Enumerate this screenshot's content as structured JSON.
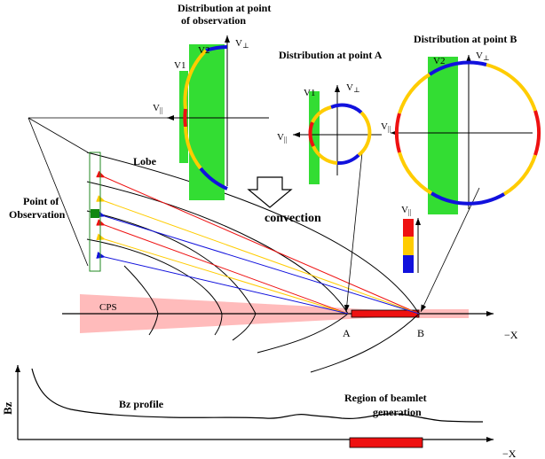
{
  "labels": {
    "obs_title_1": "Distribution at point",
    "obs_title_2": "of observation",
    "point_a_title": "Distribution at point A",
    "point_b_title": "Distribution at point B",
    "lobe": "Lobe",
    "point_obs_1": "Point of",
    "point_obs_2": "Observation",
    "convection": "convection",
    "cps": "CPS",
    "a": "A",
    "b": "B",
    "neg_x": "−X",
    "neg_x_bottom": "−X",
    "bz_axis": "Bz",
    "bz_profile": "Bz profile",
    "region_1": "Region of beamlet",
    "region_2": "generation",
    "v1": "V1",
    "v2": "V2",
    "v1_a": "V1",
    "v2_b": "V2",
    "v_perp": "V",
    "v_perp_sub": "⊥",
    "v_par": "V",
    "v_par_sub": "||"
  },
  "colors": {
    "red": "#ee1111",
    "yellow": "#ffcc00",
    "blue": "#1111dd",
    "green": "#33dd33",
    "pink": "#ffbbbb",
    "black": "#000000"
  }
}
